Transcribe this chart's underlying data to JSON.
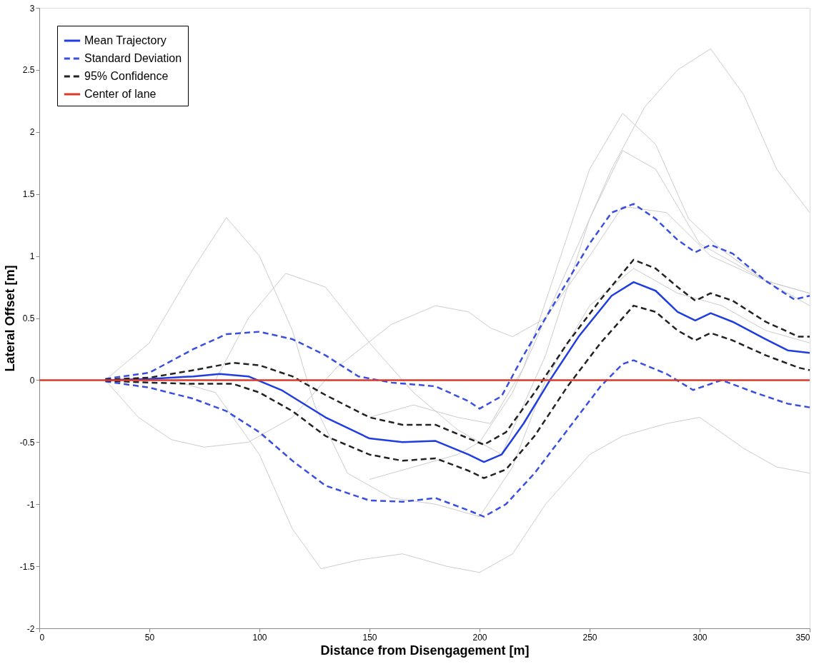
{
  "chart_data": {
    "type": "line",
    "xlabel": "Distance from Disengagement [m]",
    "ylabel": "Lateral Offset [m]",
    "xlim": [
      0,
      350
    ],
    "xticks": [
      0,
      50,
      100,
      150,
      200,
      250,
      300,
      350
    ],
    "ylim": [
      -2,
      3
    ],
    "yticks": [
      -2,
      -1.5,
      -1,
      -0.5,
      0,
      0.5,
      1,
      1.5,
      2,
      2.5,
      3
    ],
    "grid": false,
    "legend": "top left",
    "series": [
      {
        "color": "#cccccc",
        "line_style": "solid",
        "x": [
          30,
          50,
          70,
          85,
          100,
          115,
          125,
          140,
          160,
          180,
          200,
          215,
          230,
          250,
          270,
          290,
          310,
          330,
          350
        ],
        "values": [
          0,
          0.3,
          0.9,
          1.31,
          1.0,
          0.4,
          -0.2,
          -0.75,
          -0.95,
          -1.0,
          -1.1,
          -0.7,
          0.0,
          0.6,
          0.9,
          0.7,
          0.6,
          0.4,
          0.3
        ]
      },
      {
        "color": "#cccccc",
        "line_style": "solid",
        "x": [
          150,
          170,
          190,
          200,
          215,
          230,
          245,
          260,
          275,
          290,
          305,
          320,
          335,
          350
        ],
        "values": [
          -0.8,
          -0.7,
          -0.6,
          -0.5,
          -0.1,
          0.5,
          1.1,
          1.7,
          2.2,
          2.5,
          2.67,
          2.3,
          1.7,
          1.35
        ]
      },
      {
        "color": "#cccccc",
        "line_style": "solid",
        "x": [
          60,
          80,
          100,
          115,
          128,
          145,
          165,
          185,
          200,
          215,
          230,
          250,
          265,
          285,
          300,
          320,
          335,
          350
        ],
        "values": [
          0,
          -0.1,
          -0.6,
          -1.2,
          -1.52,
          -1.45,
          -1.4,
          -1.5,
          -1.55,
          -1.4,
          -1.0,
          -0.6,
          -0.45,
          -0.35,
          -0.3,
          -0.55,
          -0.7,
          -0.75
        ]
      },
      {
        "color": "#cccccc",
        "line_style": "solid",
        "x": [
          150,
          170,
          190,
          205,
          220,
          235,
          250,
          265,
          280,
          295,
          310,
          330,
          350
        ],
        "values": [
          -0.3,
          -0.2,
          -0.3,
          -0.35,
          0.1,
          0.9,
          1.7,
          2.15,
          1.9,
          1.3,
          1.05,
          0.8,
          0.7
        ]
      },
      {
        "color": "#cccccc",
        "line_style": "solid",
        "x": [
          30,
          45,
          60,
          75,
          95,
          115,
          135,
          160,
          180,
          195,
          205,
          215,
          230,
          250,
          265,
          285,
          305,
          330,
          350
        ],
        "values": [
          0,
          -0.3,
          -0.48,
          -0.54,
          -0.5,
          -0.3,
          0.1,
          0.45,
          0.6,
          0.55,
          0.42,
          0.35,
          0.5,
          1.0,
          1.4,
          1.35,
          1.0,
          0.8,
          0.7
        ]
      },
      {
        "color": "#cccccc",
        "line_style": "solid",
        "x": [
          80,
          95,
          112,
          130,
          150,
          170,
          190,
          210,
          230,
          250,
          265,
          280,
          300,
          320,
          350
        ],
        "values": [
          0,
          0.5,
          0.86,
          0.75,
          0.3,
          -0.1,
          -0.4,
          -0.6,
          0.2,
          1.3,
          1.85,
          1.7,
          1.1,
          0.9,
          0.6
        ]
      },
      {
        "name": "Mean Trajectory",
        "color": "#1f3de0",
        "line_style": "solid",
        "x": [
          30,
          50,
          70,
          82,
          95,
          110,
          130,
          150,
          165,
          180,
          195,
          202,
          210,
          220,
          232,
          245,
          260,
          270,
          280,
          290,
          298,
          305,
          315,
          330,
          340,
          350
        ],
        "values": [
          0,
          0.01,
          0.03,
          0.05,
          0.03,
          -0.08,
          -0.3,
          -0.47,
          -0.5,
          -0.49,
          -0.6,
          -0.66,
          -0.6,
          -0.35,
          0,
          0.35,
          0.68,
          0.79,
          0.72,
          0.55,
          0.48,
          0.54,
          0.47,
          0.33,
          0.24,
          0.22
        ]
      },
      {
        "name": "Standard Deviation",
        "color": "#3a4fe0",
        "line_style": "dashed",
        "x": [
          30,
          50,
          70,
          85,
          100,
          115,
          130,
          145,
          160,
          180,
          195,
          200,
          210,
          220,
          235,
          250,
          260,
          270,
          280,
          290,
          298,
          305,
          315,
          330,
          343,
          350
        ],
        "values": [
          0.01,
          0.06,
          0.25,
          0.37,
          0.39,
          0.33,
          0.2,
          0.03,
          -0.02,
          -0.05,
          -0.17,
          -0.23,
          -0.13,
          0.2,
          0.65,
          1.1,
          1.35,
          1.42,
          1.3,
          1.13,
          1.03,
          1.09,
          1.02,
          0.8,
          0.65,
          0.68
        ]
      },
      {
        "color": "#3a4fe0",
        "line_style": "dashed",
        "x": [
          30,
          50,
          70,
          85,
          100,
          115,
          130,
          150,
          165,
          180,
          195,
          202,
          212,
          225,
          240,
          255,
          265,
          270,
          285,
          297,
          310,
          325,
          340,
          350
        ],
        "values": [
          -0.01,
          -0.06,
          -0.15,
          -0.25,
          -0.42,
          -0.65,
          -0.85,
          -0.97,
          -0.98,
          -0.95,
          -1.05,
          -1.1,
          -1.0,
          -0.75,
          -0.4,
          -0.05,
          0.13,
          0.16,
          0.05,
          -0.08,
          0.0,
          -0.1,
          -0.19,
          -0.22
        ]
      },
      {
        "name": "95% Confidence",
        "color": "#222222",
        "line_style": "dashed",
        "x": [
          30,
          50,
          70,
          88,
          100,
          115,
          130,
          150,
          165,
          180,
          195,
          202,
          212,
          225,
          240,
          255,
          270,
          280,
          290,
          298,
          305,
          315,
          330,
          345,
          350
        ],
        "values": [
          0.005,
          0.02,
          0.08,
          0.14,
          0.12,
          0.03,
          -0.12,
          -0.3,
          -0.36,
          -0.36,
          -0.47,
          -0.52,
          -0.42,
          -0.1,
          0.3,
          0.65,
          0.97,
          0.9,
          0.75,
          0.64,
          0.7,
          0.64,
          0.47,
          0.35,
          0.35
        ]
      },
      {
        "color": "#222222",
        "line_style": "dashed",
        "x": [
          30,
          50,
          70,
          88,
          100,
          115,
          130,
          150,
          165,
          180,
          195,
          202,
          212,
          225,
          240,
          255,
          270,
          280,
          290,
          298,
          305,
          315,
          330,
          345,
          350
        ],
        "values": [
          -0.005,
          -0.02,
          -0.03,
          -0.03,
          -0.1,
          -0.25,
          -0.45,
          -0.6,
          -0.65,
          -0.63,
          -0.73,
          -0.79,
          -0.72,
          -0.45,
          -0.05,
          0.3,
          0.6,
          0.55,
          0.4,
          0.32,
          0.38,
          0.32,
          0.2,
          0.1,
          0.08
        ]
      },
      {
        "name": "Center of lane",
        "color": "#d93a2b",
        "line_style": "solid",
        "x": [
          0,
          350
        ],
        "values": [
          0,
          0
        ]
      }
    ]
  }
}
